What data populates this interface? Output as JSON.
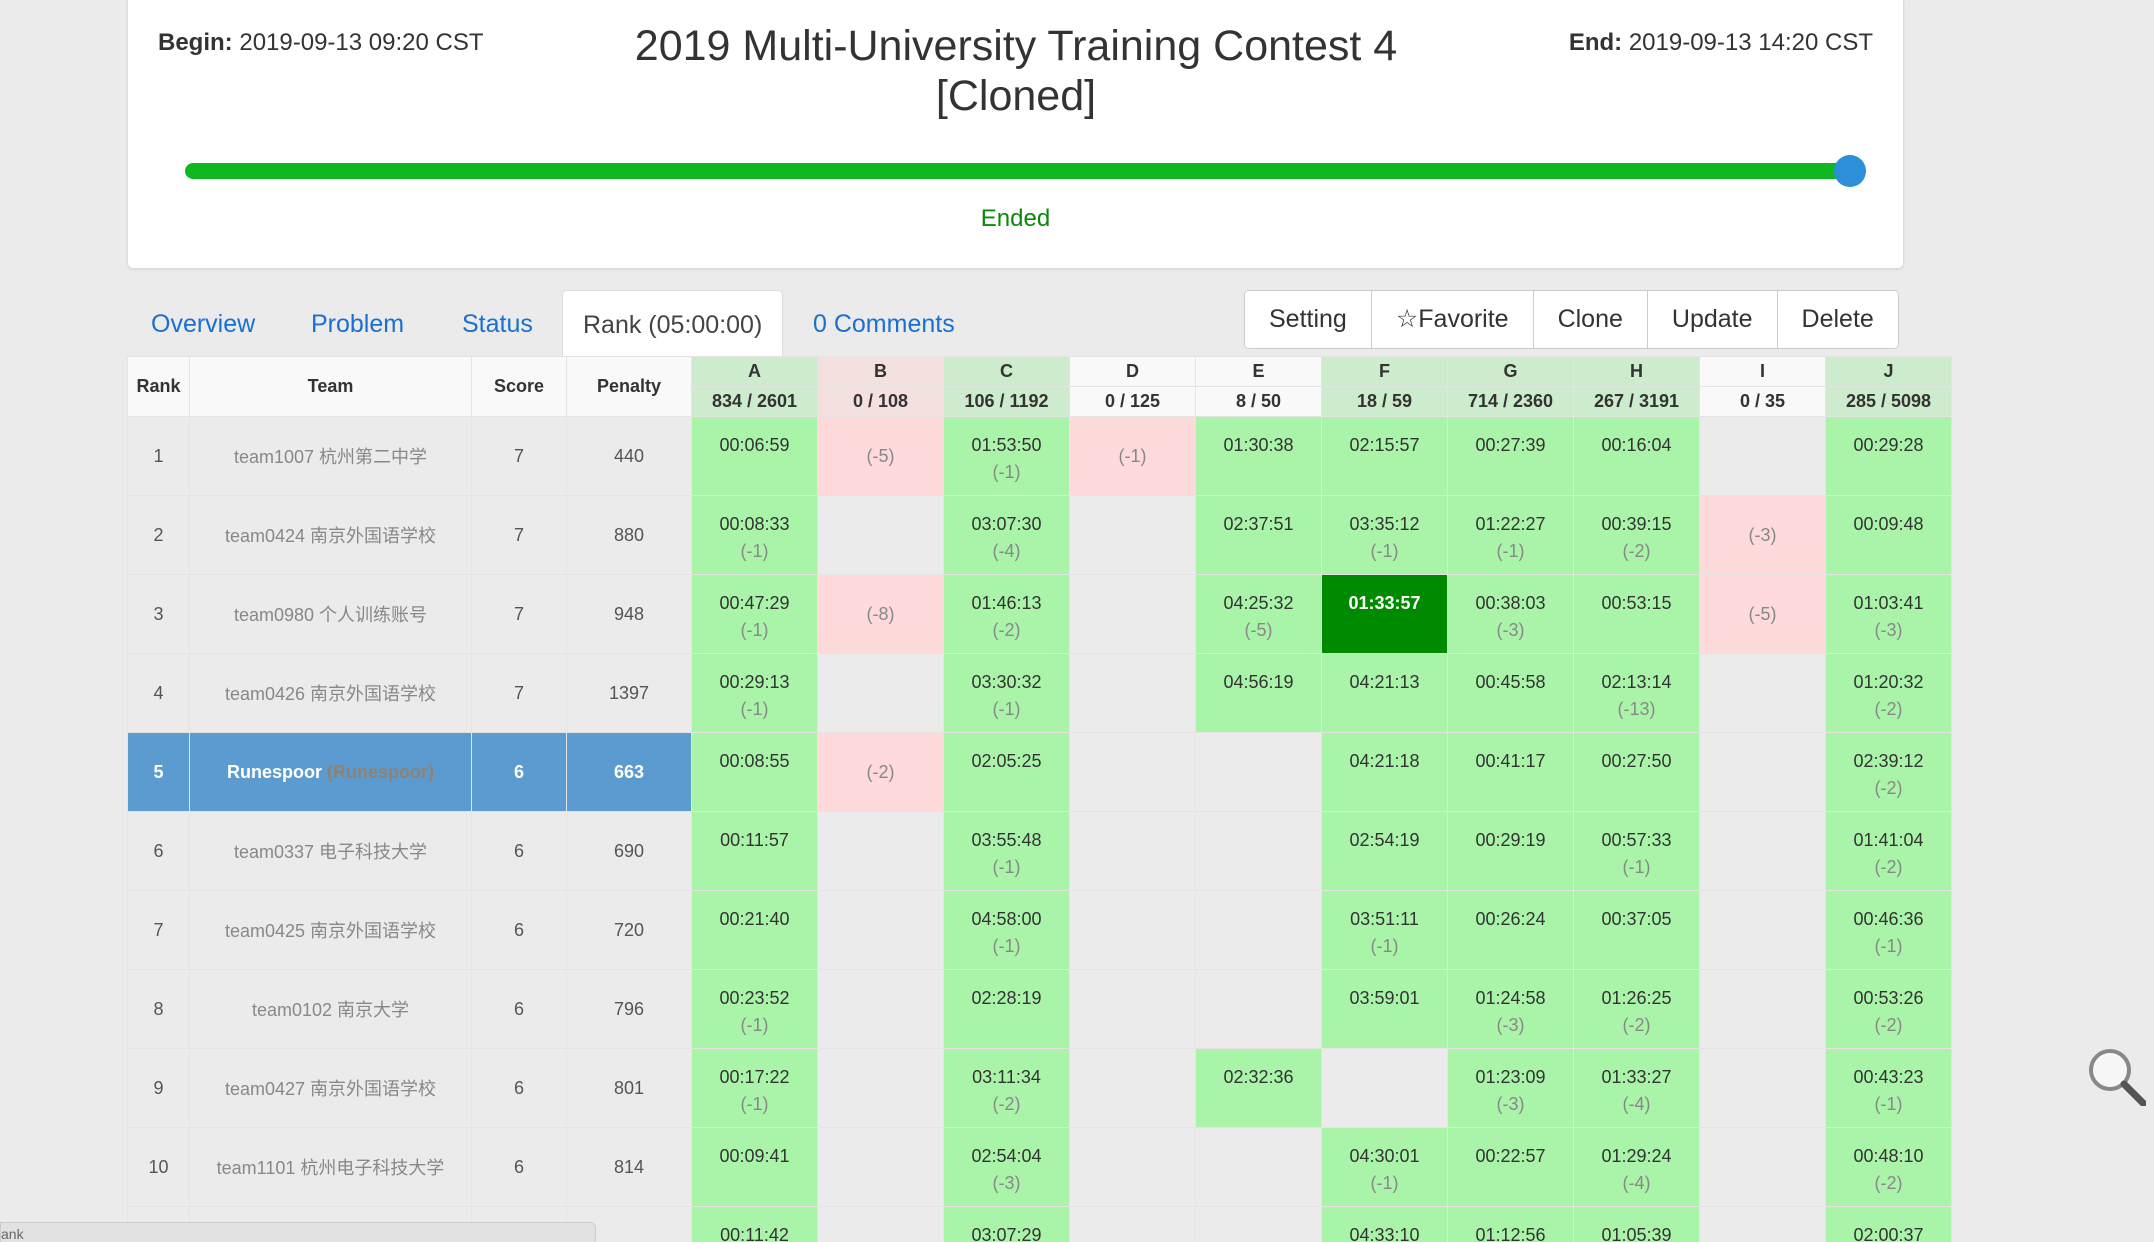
{
  "contest": {
    "begin_label": "Begin:",
    "begin_value": "2019-09-13 09:20 CST",
    "end_label": "End:",
    "end_value": "2019-09-13 14:20 CST",
    "title_line1": "2019 Multi-University Training Contest 4",
    "title_line2": "[Cloned]",
    "progress_percent": 100,
    "status": "Ended"
  },
  "tabs": [
    {
      "label": "Overview",
      "active": false
    },
    {
      "label": "Problem",
      "active": false
    },
    {
      "label": "Status",
      "active": false
    },
    {
      "label": "Rank (05:00:00)",
      "active": true
    },
    {
      "label": "0 Comments",
      "active": false
    }
  ],
  "actions": [
    {
      "label": "Setting",
      "icon": ""
    },
    {
      "label": "Favorite",
      "icon": "star-outline-icon"
    },
    {
      "label": "Clone",
      "icon": ""
    },
    {
      "label": "Update",
      "icon": ""
    },
    {
      "label": "Delete",
      "icon": ""
    }
  ],
  "table": {
    "headers": {
      "rank": "Rank",
      "team": "Team",
      "score": "Score",
      "penalty": "Penalty"
    },
    "problems": [
      {
        "id": "A",
        "stat": "834 / 2601",
        "state": "ac"
      },
      {
        "id": "B",
        "stat": "0 / 108",
        "state": "fail"
      },
      {
        "id": "C",
        "stat": "106 / 1192",
        "state": "ac"
      },
      {
        "id": "D",
        "stat": "0 / 125",
        "state": ""
      },
      {
        "id": "E",
        "stat": "8 / 50",
        "state": ""
      },
      {
        "id": "F",
        "stat": "18 / 59",
        "state": "ac"
      },
      {
        "id": "G",
        "stat": "714 / 2360",
        "state": "ac"
      },
      {
        "id": "H",
        "stat": "267 / 3191",
        "state": "ac"
      },
      {
        "id": "I",
        "stat": "0 / 35",
        "state": ""
      },
      {
        "id": "J",
        "stat": "285 / 5098",
        "state": "ac"
      }
    ],
    "rows": [
      {
        "rank": "1",
        "team": "team1007 杭州第二中学",
        "score": "7",
        "penalty": "440",
        "cells": [
          [
            "ac",
            "00:06:59",
            ""
          ],
          [
            "fail",
            "",
            "(-5)"
          ],
          [
            "ac",
            "01:53:50",
            "(-1)"
          ],
          [
            "fail",
            "",
            "(-1)"
          ],
          [
            "ac",
            "01:30:38",
            ""
          ],
          [
            "ac",
            "02:15:57",
            ""
          ],
          [
            "ac",
            "00:27:39",
            ""
          ],
          [
            "ac",
            "00:16:04",
            ""
          ],
          [
            "",
            "",
            ""
          ],
          [
            "ac",
            "00:29:28",
            ""
          ]
        ]
      },
      {
        "rank": "2",
        "team": "team0424 南京外国语学校",
        "score": "7",
        "penalty": "880",
        "cells": [
          [
            "ac",
            "00:08:33",
            "(-1)"
          ],
          [
            "",
            "",
            ""
          ],
          [
            "ac",
            "03:07:30",
            "(-4)"
          ],
          [
            "",
            "",
            ""
          ],
          [
            "ac",
            "02:37:51",
            ""
          ],
          [
            "ac",
            "03:35:12",
            "(-1)"
          ],
          [
            "ac",
            "01:22:27",
            "(-1)"
          ],
          [
            "ac",
            "00:39:15",
            "(-2)"
          ],
          [
            "fail",
            "",
            "(-3)"
          ],
          [
            "ac",
            "00:09:48",
            ""
          ]
        ]
      },
      {
        "rank": "3",
        "team": "team0980 个人训练账号",
        "score": "7",
        "penalty": "948",
        "cells": [
          [
            "ac",
            "00:47:29",
            "(-1)"
          ],
          [
            "fail",
            "",
            "(-8)"
          ],
          [
            "ac",
            "01:46:13",
            "(-2)"
          ],
          [
            "",
            "",
            ""
          ],
          [
            "ac",
            "04:25:32",
            "(-5)"
          ],
          [
            "first",
            "01:33:57",
            ""
          ],
          [
            "ac",
            "00:38:03",
            "(-3)"
          ],
          [
            "ac",
            "00:53:15",
            ""
          ],
          [
            "fail",
            "",
            "(-5)"
          ],
          [
            "ac",
            "01:03:41",
            "(-3)"
          ]
        ]
      },
      {
        "rank": "4",
        "team": "team0426 南京外国语学校",
        "score": "7",
        "penalty": "1397",
        "cells": [
          [
            "ac",
            "00:29:13",
            "(-1)"
          ],
          [
            "",
            "",
            ""
          ],
          [
            "ac",
            "03:30:32",
            "(-1)"
          ],
          [
            "",
            "",
            ""
          ],
          [
            "ac",
            "04:56:19",
            ""
          ],
          [
            "ac",
            "04:21:13",
            ""
          ],
          [
            "ac",
            "00:45:58",
            ""
          ],
          [
            "ac",
            "02:13:14",
            "(-13)"
          ],
          [
            "",
            "",
            ""
          ],
          [
            "ac",
            "01:20:32",
            "(-2)"
          ]
        ]
      },
      {
        "rank": "5",
        "team": "Runespoor",
        "team_sub": "(Runespoor)",
        "highlight": true,
        "score": "6",
        "penalty": "663",
        "cells": [
          [
            "ac",
            "00:08:55",
            ""
          ],
          [
            "fail",
            "",
            "(-2)"
          ],
          [
            "ac",
            "02:05:25",
            ""
          ],
          [
            "",
            "",
            ""
          ],
          [
            "",
            "",
            ""
          ],
          [
            "ac",
            "04:21:18",
            ""
          ],
          [
            "ac",
            "00:41:17",
            ""
          ],
          [
            "ac",
            "00:27:50",
            ""
          ],
          [
            "",
            "",
            ""
          ],
          [
            "ac",
            "02:39:12",
            "(-2)"
          ]
        ]
      },
      {
        "rank": "6",
        "team": "team0337 电子科技大学",
        "score": "6",
        "penalty": "690",
        "cells": [
          [
            "ac",
            "00:11:57",
            ""
          ],
          [
            "",
            "",
            ""
          ],
          [
            "ac",
            "03:55:48",
            "(-1)"
          ],
          [
            "",
            "",
            ""
          ],
          [
            "",
            "",
            ""
          ],
          [
            "ac",
            "02:54:19",
            ""
          ],
          [
            "ac",
            "00:29:19",
            ""
          ],
          [
            "ac",
            "00:57:33",
            "(-1)"
          ],
          [
            "",
            "",
            ""
          ],
          [
            "ac",
            "01:41:04",
            "(-2)"
          ]
        ]
      },
      {
        "rank": "7",
        "team": "team0425 南京外国语学校",
        "score": "6",
        "penalty": "720",
        "cells": [
          [
            "ac",
            "00:21:40",
            ""
          ],
          [
            "",
            "",
            ""
          ],
          [
            "ac",
            "04:58:00",
            "(-1)"
          ],
          [
            "",
            "",
            ""
          ],
          [
            "",
            "",
            ""
          ],
          [
            "ac",
            "03:51:11",
            "(-1)"
          ],
          [
            "ac",
            "00:26:24",
            ""
          ],
          [
            "ac",
            "00:37:05",
            ""
          ],
          [
            "",
            "",
            ""
          ],
          [
            "ac",
            "00:46:36",
            "(-1)"
          ]
        ]
      },
      {
        "rank": "8",
        "team": "team0102 南京大学",
        "score": "6",
        "penalty": "796",
        "cells": [
          [
            "ac",
            "00:23:52",
            "(-1)"
          ],
          [
            "",
            "",
            ""
          ],
          [
            "ac",
            "02:28:19",
            ""
          ],
          [
            "",
            "",
            ""
          ],
          [
            "",
            "",
            ""
          ],
          [
            "ac",
            "03:59:01",
            ""
          ],
          [
            "ac",
            "01:24:58",
            "(-3)"
          ],
          [
            "ac",
            "01:26:25",
            "(-2)"
          ],
          [
            "",
            "",
            ""
          ],
          [
            "ac",
            "00:53:26",
            "(-2)"
          ]
        ]
      },
      {
        "rank": "9",
        "team": "team0427 南京外国语学校",
        "score": "6",
        "penalty": "801",
        "cells": [
          [
            "ac",
            "00:17:22",
            "(-1)"
          ],
          [
            "",
            "",
            ""
          ],
          [
            "ac",
            "03:11:34",
            "(-2)"
          ],
          [
            "",
            "",
            ""
          ],
          [
            "ac",
            "02:32:36",
            ""
          ],
          [
            "",
            "",
            ""
          ],
          [
            "ac",
            "01:23:09",
            "(-3)"
          ],
          [
            "ac",
            "01:33:27",
            "(-4)"
          ],
          [
            "",
            "",
            ""
          ],
          [
            "ac",
            "00:43:23",
            "(-1)"
          ]
        ]
      },
      {
        "rank": "10",
        "team": "team1101 杭州电子科技大学",
        "score": "6",
        "penalty": "814",
        "cells": [
          [
            "ac",
            "00:09:41",
            ""
          ],
          [
            "",
            "",
            ""
          ],
          [
            "ac",
            "02:54:04",
            "(-3)"
          ],
          [
            "",
            "",
            ""
          ],
          [
            "",
            "",
            ""
          ],
          [
            "ac",
            "04:30:01",
            "(-1)"
          ],
          [
            "ac",
            "00:22:57",
            ""
          ],
          [
            "ac",
            "01:29:24",
            "(-4)"
          ],
          [
            "",
            "",
            ""
          ],
          [
            "ac",
            "00:48:10",
            "(-2)"
          ]
        ]
      },
      {
        "rank": "",
        "team": "",
        "score": "",
        "penalty": "",
        "cells": [
          [
            "ac",
            "00:11:42",
            ""
          ],
          [
            "",
            "",
            ""
          ],
          [
            "ac",
            "03:07:29",
            ""
          ],
          [
            "",
            "",
            ""
          ],
          [
            "",
            "",
            ""
          ],
          [
            "ac",
            "04:33:10",
            ""
          ],
          [
            "ac",
            "01:12:56",
            ""
          ],
          [
            "ac",
            "01:05:39",
            ""
          ],
          [
            "",
            "",
            ""
          ],
          [
            "ac",
            "02:00:37",
            ""
          ]
        ]
      }
    ]
  },
  "status_bar": {
    "text": "ank"
  },
  "colors": {
    "accepted": "#aaf4aa",
    "failed": "#ffdada",
    "first_blood": "#008a00",
    "highlight_row": "#5b9bd0",
    "progress": "#10b820"
  }
}
